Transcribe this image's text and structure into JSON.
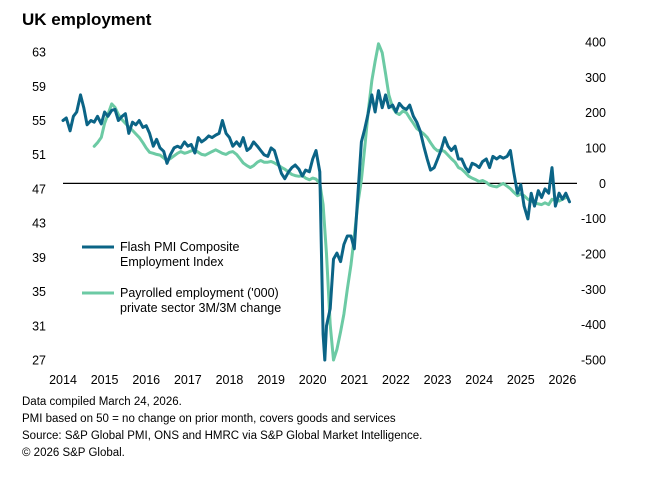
{
  "chart_data": {
    "type": "line",
    "title": "UK employment",
    "x_range": [
      2014.0,
      2026.35
    ],
    "x_ticks": [
      "2014",
      "2015",
      "2016",
      "2017",
      "2018",
      "2019",
      "2020",
      "2021",
      "2022",
      "2023",
      "2024",
      "2025",
      "2026"
    ],
    "left_axis": {
      "range": [
        27,
        65
      ],
      "ticks": [
        "63",
        "59",
        "55",
        "51",
        "47",
        "43",
        "39",
        "35",
        "31",
        "27"
      ]
    },
    "right_axis": {
      "range": [
        -500,
        420
      ],
      "ticks": [
        "400",
        "300",
        "200",
        "100",
        "0",
        "-100",
        "-200",
        "-300",
        "-400",
        "-500"
      ]
    },
    "reference_line": {
      "axis": "right",
      "value": 0
    },
    "legend_placement": "left-middle",
    "series": [
      {
        "name": "Flash PMI Composite Employment Index",
        "legend_lines": [
          "Flash PMI Composite",
          "Employment Index"
        ],
        "axis": "left",
        "color": "#0b6486",
        "points": [
          [
            2014.0,
            55.0
          ],
          [
            2014.08,
            55.3
          ],
          [
            2014.17,
            53.8
          ],
          [
            2014.25,
            55.5
          ],
          [
            2014.33,
            56.0
          ],
          [
            2014.42,
            58.0
          ],
          [
            2014.5,
            56.5
          ],
          [
            2014.58,
            54.5
          ],
          [
            2014.67,
            55.0
          ],
          [
            2014.75,
            54.8
          ],
          [
            2014.83,
            55.5
          ],
          [
            2014.92,
            54.6
          ],
          [
            2015.0,
            56.0
          ],
          [
            2015.08,
            55.5
          ],
          [
            2015.17,
            56.2
          ],
          [
            2015.25,
            56.3
          ],
          [
            2015.33,
            55.0
          ],
          [
            2015.42,
            55.5
          ],
          [
            2015.5,
            55.8
          ],
          [
            2015.58,
            53.5
          ],
          [
            2015.67,
            54.8
          ],
          [
            2015.75,
            54.5
          ],
          [
            2015.83,
            55.0
          ],
          [
            2015.92,
            54.2
          ],
          [
            2016.0,
            54.4
          ],
          [
            2016.08,
            53.5
          ],
          [
            2016.17,
            52.0
          ],
          [
            2016.25,
            52.8
          ],
          [
            2016.33,
            51.8
          ],
          [
            2016.42,
            51.4
          ],
          [
            2016.5,
            50.0
          ],
          [
            2016.58,
            51.0
          ],
          [
            2016.67,
            51.8
          ],
          [
            2016.75,
            52.0
          ],
          [
            2016.83,
            51.8
          ],
          [
            2016.92,
            52.5
          ],
          [
            2017.0,
            52.0
          ],
          [
            2017.08,
            52.2
          ],
          [
            2017.17,
            51.2
          ],
          [
            2017.25,
            53.0
          ],
          [
            2017.33,
            52.5
          ],
          [
            2017.42,
            52.8
          ],
          [
            2017.5,
            53.2
          ],
          [
            2017.58,
            53.0
          ],
          [
            2017.67,
            53.3
          ],
          [
            2017.75,
            53.5
          ],
          [
            2017.83,
            55.0
          ],
          [
            2017.92,
            53.5
          ],
          [
            2018.0,
            53.0
          ],
          [
            2018.08,
            52.0
          ],
          [
            2018.17,
            52.5
          ],
          [
            2018.25,
            52.0
          ],
          [
            2018.33,
            53.0
          ],
          [
            2018.42,
            51.5
          ],
          [
            2018.5,
            51.8
          ],
          [
            2018.58,
            52.5
          ],
          [
            2018.67,
            52.0
          ],
          [
            2018.75,
            51.5
          ],
          [
            2018.83,
            51.0
          ],
          [
            2018.92,
            50.8
          ],
          [
            2019.0,
            51.8
          ],
          [
            2019.08,
            51.5
          ],
          [
            2019.17,
            50.0
          ],
          [
            2019.25,
            48.8
          ],
          [
            2019.33,
            48.2
          ],
          [
            2019.42,
            49.0
          ],
          [
            2019.5,
            49.5
          ],
          [
            2019.58,
            49.8
          ],
          [
            2019.67,
            49.3
          ],
          [
            2019.75,
            48.5
          ],
          [
            2019.83,
            49.2
          ],
          [
            2019.92,
            49.0
          ],
          [
            2020.0,
            50.5
          ],
          [
            2020.08,
            51.5
          ],
          [
            2020.17,
            49.0
          ],
          [
            2020.25,
            30.0
          ],
          [
            2020.29,
            27.0
          ],
          [
            2020.33,
            31.0
          ],
          [
            2020.42,
            33.0
          ],
          [
            2020.5,
            38.8
          ],
          [
            2020.58,
            39.5
          ],
          [
            2020.67,
            38.5
          ],
          [
            2020.75,
            40.5
          ],
          [
            2020.83,
            41.5
          ],
          [
            2020.92,
            41.5
          ],
          [
            2021.0,
            40.0
          ],
          [
            2021.08,
            46.0
          ],
          [
            2021.17,
            52.5
          ],
          [
            2021.25,
            54.0
          ],
          [
            2021.33,
            55.8
          ],
          [
            2021.42,
            58.0
          ],
          [
            2021.5,
            56.0
          ],
          [
            2021.58,
            58.5
          ],
          [
            2021.67,
            56.5
          ],
          [
            2021.75,
            58.0
          ],
          [
            2021.83,
            56.5
          ],
          [
            2021.92,
            56.8
          ],
          [
            2022.0,
            56.0
          ],
          [
            2022.08,
            57.0
          ],
          [
            2022.17,
            56.5
          ],
          [
            2022.25,
            56.3
          ],
          [
            2022.33,
            56.8
          ],
          [
            2022.42,
            55.5
          ],
          [
            2022.5,
            54.8
          ],
          [
            2022.58,
            53.8
          ],
          [
            2022.67,
            52.0
          ],
          [
            2022.75,
            50.5
          ],
          [
            2022.83,
            49.2
          ],
          [
            2022.92,
            49.5
          ],
          [
            2023.0,
            50.5
          ],
          [
            2023.08,
            51.5
          ],
          [
            2023.17,
            53.0
          ],
          [
            2023.25,
            52.0
          ],
          [
            2023.33,
            51.5
          ],
          [
            2023.42,
            52.0
          ],
          [
            2023.5,
            50.5
          ],
          [
            2023.58,
            50.5
          ],
          [
            2023.67,
            49.5
          ],
          [
            2023.75,
            49.0
          ],
          [
            2023.83,
            50.0
          ],
          [
            2023.92,
            49.8
          ],
          [
            2024.0,
            49.5
          ],
          [
            2024.08,
            50.2
          ],
          [
            2024.17,
            50.5
          ],
          [
            2024.25,
            49.5
          ],
          [
            2024.33,
            50.8
          ],
          [
            2024.42,
            50.5
          ],
          [
            2024.5,
            50.8
          ],
          [
            2024.58,
            50.6
          ],
          [
            2024.67,
            50.8
          ],
          [
            2024.75,
            51.5
          ],
          [
            2024.83,
            49.0
          ],
          [
            2024.92,
            46.5
          ],
          [
            2025.0,
            47.5
          ],
          [
            2025.08,
            45.0
          ],
          [
            2025.17,
            43.5
          ],
          [
            2025.25,
            46.5
          ],
          [
            2025.33,
            45.0
          ],
          [
            2025.42,
            46.8
          ],
          [
            2025.5,
            46.0
          ],
          [
            2025.58,
            47.0
          ],
          [
            2025.67,
            46.5
          ],
          [
            2025.75,
            49.5
          ],
          [
            2025.83,
            45.0
          ],
          [
            2025.92,
            46.5
          ],
          [
            2026.0,
            45.8
          ],
          [
            2026.08,
            46.5
          ],
          [
            2026.17,
            45.5
          ]
        ]
      },
      {
        "name": "Payrolled employment ('000) private sector 3M/3M change",
        "legend_lines": [
          "Payrolled employment ('000)",
          "private sector 3M/3M change"
        ],
        "axis": "right",
        "color": "#6ccaa4",
        "points": [
          [
            2014.75,
            105
          ],
          [
            2014.83,
            115
          ],
          [
            2014.92,
            130
          ],
          [
            2015.0,
            170
          ],
          [
            2015.08,
            195
          ],
          [
            2015.17,
            225
          ],
          [
            2015.25,
            215
          ],
          [
            2015.33,
            195
          ],
          [
            2015.42,
            180
          ],
          [
            2015.5,
            170
          ],
          [
            2015.58,
            160
          ],
          [
            2015.67,
            150
          ],
          [
            2015.75,
            140
          ],
          [
            2015.83,
            130
          ],
          [
            2015.92,
            115
          ],
          [
            2016.0,
            100
          ],
          [
            2016.08,
            88
          ],
          [
            2016.17,
            85
          ],
          [
            2016.25,
            82
          ],
          [
            2016.33,
            80
          ],
          [
            2016.42,
            72
          ],
          [
            2016.5,
            65
          ],
          [
            2016.58,
            70
          ],
          [
            2016.67,
            78
          ],
          [
            2016.75,
            85
          ],
          [
            2016.83,
            90
          ],
          [
            2016.92,
            85
          ],
          [
            2017.0,
            88
          ],
          [
            2017.08,
            92
          ],
          [
            2017.17,
            95
          ],
          [
            2017.25,
            88
          ],
          [
            2017.33,
            82
          ],
          [
            2017.42,
            80
          ],
          [
            2017.5,
            85
          ],
          [
            2017.58,
            90
          ],
          [
            2017.67,
            95
          ],
          [
            2017.75,
            90
          ],
          [
            2017.83,
            85
          ],
          [
            2017.92,
            82
          ],
          [
            2018.0,
            88
          ],
          [
            2018.08,
            90
          ],
          [
            2018.17,
            82
          ],
          [
            2018.25,
            70
          ],
          [
            2018.33,
            58
          ],
          [
            2018.42,
            50
          ],
          [
            2018.5,
            45
          ],
          [
            2018.58,
            50
          ],
          [
            2018.67,
            60
          ],
          [
            2018.75,
            65
          ],
          [
            2018.83,
            60
          ],
          [
            2018.92,
            60
          ],
          [
            2019.0,
            62
          ],
          [
            2019.08,
            58
          ],
          [
            2019.17,
            52
          ],
          [
            2019.25,
            45
          ],
          [
            2019.33,
            40
          ],
          [
            2019.42,
            32
          ],
          [
            2019.5,
            25
          ],
          [
            2019.58,
            22
          ],
          [
            2019.67,
            20
          ],
          [
            2019.75,
            22
          ],
          [
            2019.83,
            15
          ],
          [
            2019.92,
            10
          ],
          [
            2020.0,
            15
          ],
          [
            2020.08,
            12
          ],
          [
            2020.17,
            0
          ],
          [
            2020.25,
            -60
          ],
          [
            2020.33,
            -200
          ],
          [
            2020.42,
            -400
          ],
          [
            2020.5,
            -500
          ],
          [
            2020.58,
            -470
          ],
          [
            2020.67,
            -420
          ],
          [
            2020.75,
            -370
          ],
          [
            2020.83,
            -300
          ],
          [
            2020.92,
            -230
          ],
          [
            2021.0,
            -150
          ],
          [
            2021.08,
            -60
          ],
          [
            2021.17,
            10
          ],
          [
            2021.25,
            100
          ],
          [
            2021.33,
            200
          ],
          [
            2021.42,
            290
          ],
          [
            2021.5,
            345
          ],
          [
            2021.58,
            395
          ],
          [
            2021.67,
            370
          ],
          [
            2021.75,
            310
          ],
          [
            2021.83,
            250
          ],
          [
            2021.92,
            215
          ],
          [
            2022.0,
            200
          ],
          [
            2022.08,
            195
          ],
          [
            2022.17,
            205
          ],
          [
            2022.25,
            200
          ],
          [
            2022.33,
            185
          ],
          [
            2022.42,
            170
          ],
          [
            2022.5,
            155
          ],
          [
            2022.58,
            148
          ],
          [
            2022.67,
            140
          ],
          [
            2022.75,
            130
          ],
          [
            2022.83,
            115
          ],
          [
            2022.92,
            100
          ],
          [
            2023.0,
            92
          ],
          [
            2023.08,
            95
          ],
          [
            2023.17,
            90
          ],
          [
            2023.25,
            80
          ],
          [
            2023.33,
            70
          ],
          [
            2023.42,
            60
          ],
          [
            2023.5,
            45
          ],
          [
            2023.58,
            40
          ],
          [
            2023.67,
            30
          ],
          [
            2023.75,
            20
          ],
          [
            2023.83,
            15
          ],
          [
            2023.92,
            10
          ],
          [
            2024.0,
            5
          ],
          [
            2024.08,
            8
          ],
          [
            2024.17,
            3
          ],
          [
            2024.25,
            -5
          ],
          [
            2024.33,
            -8
          ],
          [
            2024.42,
            -10
          ],
          [
            2024.5,
            -5
          ],
          [
            2024.58,
            0
          ],
          [
            2024.67,
            -8
          ],
          [
            2024.75,
            -15
          ],
          [
            2024.83,
            -25
          ],
          [
            2024.92,
            -35
          ],
          [
            2025.0,
            -30
          ],
          [
            2025.08,
            -35
          ],
          [
            2025.17,
            -45
          ],
          [
            2025.25,
            -50
          ],
          [
            2025.33,
            -55
          ],
          [
            2025.42,
            -58
          ],
          [
            2025.5,
            -60
          ],
          [
            2025.58,
            -55
          ],
          [
            2025.67,
            -60
          ],
          [
            2025.75,
            -45
          ],
          [
            2025.83,
            -48
          ],
          [
            2025.92,
            -50
          ],
          [
            2026.0,
            -45
          ],
          [
            2026.08,
            -40
          ]
        ]
      }
    ]
  },
  "notes": [
    "Data compiled March 24, 2026.",
    "PMI based on 50 = no change on prior month, covers goods and services",
    "Source: S&P Global PMI, ONS and HMRC via S&P Global Market Intelligence.",
    "© 2026 S&P Global."
  ]
}
